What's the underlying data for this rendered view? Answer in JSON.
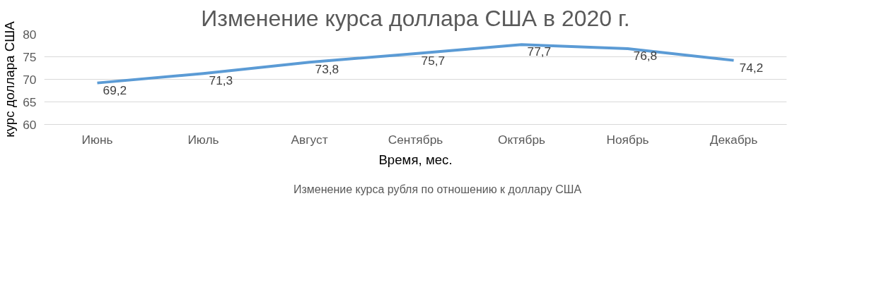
{
  "chart_data": {
    "type": "line",
    "title": "Изменение курса доллара США в 2020 г.",
    "xlabel": "Время, мес.",
    "ylabel": "курс доллара США",
    "categories": [
      "Июнь",
      "Июль",
      "Август",
      "Сентябрь",
      "Октябрь",
      "Ноябрь",
      "Декабрь"
    ],
    "series": [
      {
        "name": "Изменение курса рубля по отношению к доллару США",
        "color": "#5b9bd5",
        "values": [
          69.2,
          71.3,
          73.8,
          75.7,
          77.7,
          76.8,
          74.2
        ],
        "value_labels": [
          "69,2",
          "71,3",
          "73,8",
          "75,7",
          "77,7",
          "76,8",
          "74,2"
        ]
      }
    ],
    "ylim": [
      60,
      80
    ],
    "yticks": [
      60,
      65,
      70,
      75,
      80
    ],
    "grid": "y",
    "legend": "bottom",
    "marker": "none",
    "line_style": "solid"
  }
}
